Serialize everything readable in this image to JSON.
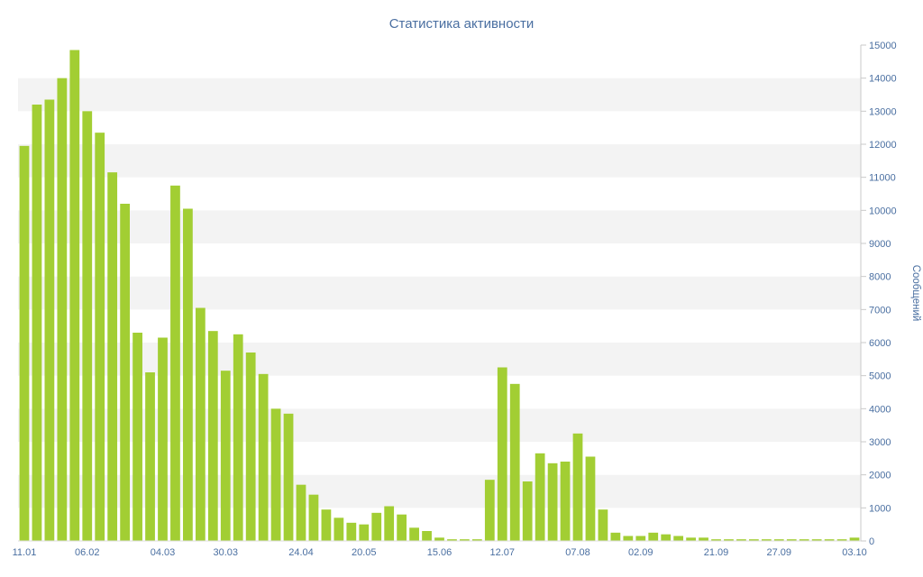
{
  "page": {
    "background": "#ffffff"
  },
  "chart_data": {
    "type": "bar",
    "title": "Статистика активности",
    "y_axis_title": "Сообщений",
    "xlabel": "",
    "ylabel": "Сообщений",
    "ylim": [
      0,
      15000
    ],
    "tick_interval": 1000,
    "grid": "alternating-bands",
    "band_colors": [
      "#ffffff",
      "#f3f3f3"
    ],
    "bar_color": "#a2ce33",
    "label_color": "#4a6fa1",
    "axis_line_color": "#c9c9c9",
    "legend": "none",
    "values": [
      11950,
      13200,
      13350,
      14000,
      14850,
      13000,
      12350,
      11150,
      10200,
      6300,
      5100,
      6150,
      10750,
      10050,
      7050,
      6350,
      5150,
      6250,
      5700,
      5050,
      4000,
      3850,
      1700,
      1400,
      950,
      700,
      550,
      500,
      850,
      1050,
      800,
      400,
      300,
      100,
      50,
      50,
      50,
      1850,
      5250,
      4750,
      1800,
      2650,
      2350,
      2400,
      3250,
      2550,
      950,
      250,
      150,
      150,
      250,
      200,
      150,
      100,
      100,
      50,
      50,
      50,
      50,
      50,
      50,
      50,
      50,
      50,
      50,
      50,
      100
    ],
    "x_tick_labels": [
      {
        "index": 0,
        "label": "11.01"
      },
      {
        "index": 5,
        "label": "06.02"
      },
      {
        "index": 11,
        "label": "04.03"
      },
      {
        "index": 16,
        "label": "30.03"
      },
      {
        "index": 22,
        "label": "24.04"
      },
      {
        "index": 27,
        "label": "20.05"
      },
      {
        "index": 33,
        "label": "15.06"
      },
      {
        "index": 38,
        "label": "12.07"
      },
      {
        "index": 44,
        "label": "07.08"
      },
      {
        "index": 49,
        "label": "02.09"
      },
      {
        "index": 55,
        "label": "21.09"
      },
      {
        "index": 60,
        "label": "27.09"
      },
      {
        "index": 66,
        "label": "03.10"
      }
    ]
  }
}
